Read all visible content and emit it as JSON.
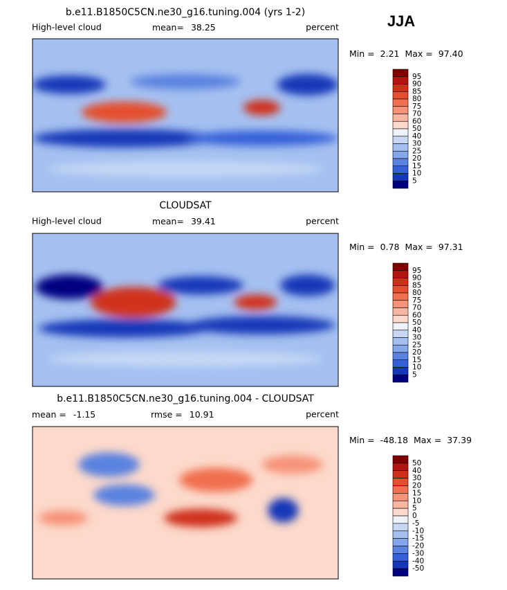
{
  "header": {
    "season": "JJA"
  },
  "panels": [
    {
      "title": "b.e11.B1850C5CN.ne30_g16.tuning.004 (yrs 1-2)",
      "subtitle_left": "High-level cloud",
      "stats": [
        {
          "label": "mean=",
          "value": "38.25"
        }
      ],
      "subtitle_right": "percent",
      "range": {
        "min_label": "Min =",
        "min": "2.21",
        "max_label": "Max =",
        "max": "97.40"
      },
      "colorbar": {
        "labels": [
          95,
          90,
          85,
          80,
          75,
          70,
          60,
          50,
          40,
          30,
          25,
          20,
          15,
          10,
          5
        ],
        "colors": [
          "#800000",
          "#b2150f",
          "#d0301a",
          "#e4502f",
          "#f07050",
          "#f69378",
          "#f9b6a0",
          "#fcd9cb",
          "#eef2fb",
          "#c6d8f5",
          "#a5c0f0",
          "#84a6ea",
          "#5a82e0",
          "#3560d8",
          "#1438b8",
          "#000080"
        ]
      }
    },
    {
      "title": "CLOUDSAT",
      "subtitle_left": "High-level cloud",
      "stats": [
        {
          "label": "mean=",
          "value": "39.41"
        }
      ],
      "subtitle_right": "percent",
      "range": {
        "min_label": "Min =",
        "min": "0.78",
        "max_label": "Max =",
        "max": "97.31"
      },
      "colorbar": {
        "labels": [
          95,
          90,
          85,
          80,
          75,
          70,
          60,
          50,
          40,
          30,
          25,
          20,
          15,
          10,
          5
        ],
        "colors": [
          "#800000",
          "#b2150f",
          "#d0301a",
          "#e4502f",
          "#f07050",
          "#f69378",
          "#f9b6a0",
          "#fcd9cb",
          "#eef2fb",
          "#c6d8f5",
          "#a5c0f0",
          "#84a6ea",
          "#5a82e0",
          "#3560d8",
          "#1438b8",
          "#000080"
        ]
      }
    },
    {
      "title": "b.e11.B1850C5CN.ne30_g16.tuning.004 - CLOUDSAT",
      "stats": [
        {
          "label": "mean =",
          "value": "-1.15"
        },
        {
          "label": "rmse =",
          "value": "10.91"
        }
      ],
      "subtitle_right": "percent",
      "range": {
        "min_label": "Min =",
        "min": "-48.18",
        "max_label": "Max =",
        "max": "37.39"
      },
      "colorbar": {
        "labels": [
          50,
          40,
          30,
          20,
          15,
          10,
          5,
          0,
          -5,
          -10,
          -15,
          -20,
          -30,
          -40,
          -50
        ],
        "colors": [
          "#800000",
          "#b2150f",
          "#d0301a",
          "#e4502f",
          "#f07050",
          "#f69378",
          "#f9b6a0",
          "#fcd9cb",
          "#eef2fb",
          "#c6d8f5",
          "#a5c0f0",
          "#84a6ea",
          "#5a82e0",
          "#3560d8",
          "#1438b8",
          "#000080"
        ]
      }
    }
  ]
}
